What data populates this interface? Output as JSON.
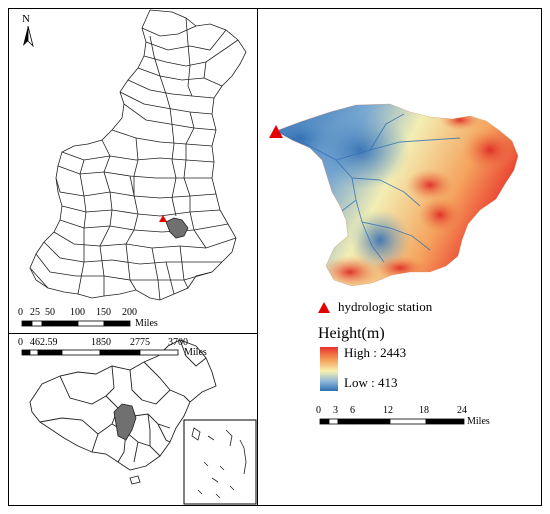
{
  "north_arrow": {
    "label": "N"
  },
  "province_map": {
    "scale": {
      "ticks": [
        "0",
        "25",
        "50",
        "100",
        "150",
        "200"
      ],
      "unit": "Miles"
    }
  },
  "china_map": {
    "scale": {
      "ticks": [
        "0",
        "462.59",
        "1850",
        "2775",
        "3700"
      ],
      "unit": "Miles"
    }
  },
  "legend": {
    "station_label": "hydrologic station",
    "station_color": "#e60000",
    "height_title": "Height(m)",
    "high_label": "High : 2443",
    "low_label": "Low : 413",
    "high_color": "#e8312a",
    "low_color": "#2f6db3"
  },
  "basin_map": {
    "scale": {
      "ticks": [
        "0",
        "3",
        "6",
        "12",
        "18",
        "24"
      ],
      "unit": "Miles"
    }
  }
}
